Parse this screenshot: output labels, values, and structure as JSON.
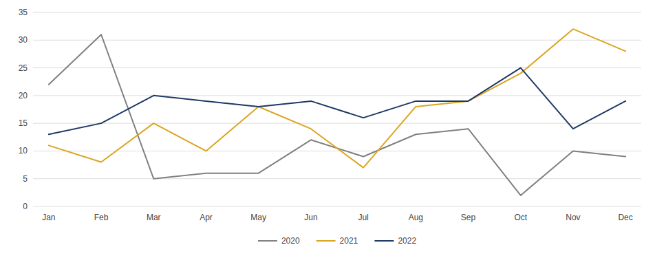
{
  "chart_data": {
    "type": "line",
    "categories": [
      "Jan",
      "Feb",
      "Mar",
      "Apr",
      "May",
      "Jun",
      "Jul",
      "Aug",
      "Sep",
      "Oct",
      "Nov",
      "Dec"
    ],
    "series": [
      {
        "name": "2020",
        "color": "#808080",
        "values": [
          22,
          31,
          5,
          6,
          6,
          12,
          9,
          13,
          14,
          2,
          10,
          9
        ]
      },
      {
        "name": "2021",
        "color": "#DAA520",
        "values": [
          11,
          8,
          15,
          10,
          18,
          14,
          7,
          18,
          19,
          24,
          32,
          28
        ]
      },
      {
        "name": "2022",
        "color": "#1F3864",
        "values": [
          13,
          15,
          20,
          19,
          18,
          19,
          16,
          19,
          19,
          25,
          14,
          19
        ]
      }
    ],
    "ylim": [
      0,
      35
    ],
    "yticks": [
      0,
      5,
      10,
      15,
      20,
      25,
      30,
      35
    ],
    "grid": true,
    "legend": "bottom"
  }
}
